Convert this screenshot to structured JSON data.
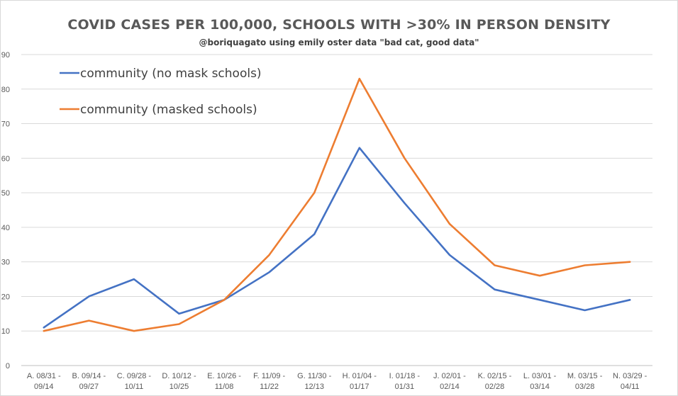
{
  "chart_data": {
    "type": "line",
    "title": "COVID CASES PER 100,000, SCHOOLS WITH >30% IN PERSON DENSITY",
    "subtitle": "@boriquagato using emily oster data \"bad cat, good data\"",
    "xlabel": "",
    "ylabel": "",
    "ylim": [
      0,
      90
    ],
    "yticks": [
      0,
      10,
      20,
      30,
      40,
      50,
      60,
      70,
      80,
      90
    ],
    "grid": true,
    "legend_position": "top-left",
    "categories": [
      [
        "A. 08/31 -",
        "09/14"
      ],
      [
        "B. 09/14 -",
        "09/27"
      ],
      [
        "C. 09/28 -",
        "10/11"
      ],
      [
        "D. 10/12 -",
        "10/25"
      ],
      [
        "E. 10/26 -",
        "11/08"
      ],
      [
        "F. 11/09 -",
        "11/22"
      ],
      [
        "G. 11/30 -",
        "12/13"
      ],
      [
        "H. 01/04 -",
        "01/17"
      ],
      [
        "I. 01/18 -",
        "01/31"
      ],
      [
        "J. 02/01 -",
        "02/14"
      ],
      [
        "K. 02/15 -",
        "02/28"
      ],
      [
        "L. 03/01 -",
        "03/14"
      ],
      [
        "M. 03/15 -",
        "03/28"
      ],
      [
        "N. 03/29 -",
        "04/11"
      ]
    ],
    "series": [
      {
        "name": "community (no mask schools)",
        "color": "#4472c4",
        "values": [
          11,
          20,
          25,
          15,
          19,
          27,
          38,
          63,
          47,
          32,
          22,
          19,
          16,
          19
        ]
      },
      {
        "name": "community (masked schools)",
        "color": "#ed7d31",
        "values": [
          10,
          13,
          10,
          12,
          19,
          32,
          50,
          83,
          60,
          41,
          29,
          26,
          29,
          30
        ]
      }
    ]
  }
}
